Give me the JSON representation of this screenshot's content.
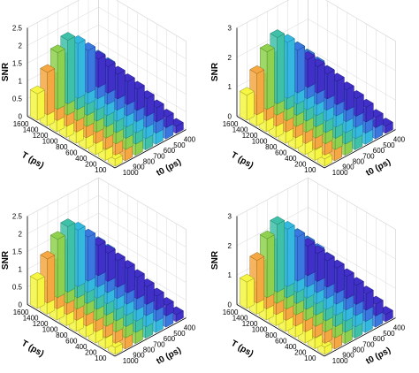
{
  "chart_data": [
    {
      "type": "bar",
      "ylabel": "SNR",
      "xlabel": "T (ps)",
      "zlabel": "t0 (ps)",
      "T_ticks": [
        "1600",
        "1400",
        "1200",
        "1000",
        "800",
        "600",
        "400",
        "200",
        "100"
      ],
      "t0_ticks": [
        "1000",
        "900",
        "800",
        "700",
        "600",
        "500",
        "400"
      ],
      "y_ticks": [
        "0",
        "0.5",
        "1",
        "1.5",
        "2",
        "2.5"
      ],
      "ylim": [
        0,
        2.5
      ],
      "t0_values": [
        1000,
        900,
        800,
        700,
        600,
        500,
        400
      ],
      "T_values": [
        1600,
        1400,
        1200,
        1000,
        800,
        600,
        400,
        200,
        100
      ],
      "values": [
        [
          0.75,
          1.2,
          1.6,
          1.8,
          1.55,
          1.2,
          0.8
        ],
        [
          0.7,
          1.15,
          1.55,
          1.75,
          1.5,
          1.15,
          0.75
        ],
        [
          0.65,
          1.1,
          1.5,
          1.7,
          1.45,
          1.1,
          0.7
        ],
        [
          0.6,
          1.0,
          1.4,
          1.6,
          1.35,
          1.0,
          0.65
        ],
        [
          0.55,
          0.9,
          1.3,
          1.5,
          1.25,
          0.9,
          0.6
        ],
        [
          0.5,
          0.8,
          1.15,
          1.35,
          1.1,
          0.8,
          0.5
        ],
        [
          0.4,
          0.7,
          1.0,
          1.15,
          0.95,
          0.7,
          0.4
        ],
        [
          0.3,
          0.5,
          0.75,
          0.9,
          0.7,
          0.5,
          0.3
        ],
        [
          0.2,
          0.35,
          0.5,
          0.6,
          0.5,
          0.35,
          0.2
        ]
      ]
    },
    {
      "type": "bar",
      "ylabel": "SNR",
      "xlabel": "T (ps)",
      "zlabel": "t0 (ps)",
      "T_ticks": [
        "1600",
        "1400",
        "1200",
        "1000",
        "800",
        "600",
        "400",
        "200",
        "100"
      ],
      "t0_ticks": [
        "1000",
        "900",
        "800",
        "700",
        "600",
        "500",
        "400"
      ],
      "y_ticks": [
        "0",
        "1",
        "2",
        "3"
      ],
      "ylim": [
        0,
        3
      ],
      "t0_values": [
        1000,
        900,
        800,
        700,
        600,
        500,
        400
      ],
      "T_values": [
        1600,
        1400,
        1200,
        1000,
        800,
        600,
        400,
        200,
        100
      ],
      "values": [
        [
          0.85,
          1.4,
          1.95,
          2.25,
          1.9,
          1.45,
          0.95
        ],
        [
          0.8,
          1.35,
          1.9,
          2.2,
          1.85,
          1.4,
          0.9
        ],
        [
          0.75,
          1.3,
          1.85,
          2.15,
          1.8,
          1.35,
          0.85
        ],
        [
          0.7,
          1.2,
          1.75,
          2.05,
          1.7,
          1.25,
          0.8
        ],
        [
          0.65,
          1.1,
          1.6,
          1.9,
          1.55,
          1.15,
          0.7
        ],
        [
          0.55,
          0.95,
          1.4,
          1.7,
          1.35,
          1.0,
          0.6
        ],
        [
          0.45,
          0.8,
          1.2,
          1.45,
          1.15,
          0.85,
          0.5
        ],
        [
          0.35,
          0.6,
          0.9,
          1.1,
          0.85,
          0.6,
          0.35
        ],
        [
          0.25,
          0.4,
          0.6,
          0.75,
          0.6,
          0.4,
          0.25
        ]
      ]
    },
    {
      "type": "bar",
      "ylabel": "SNR",
      "xlabel": "T (ps)",
      "zlabel": "t0 (ps)",
      "T_ticks": [
        "1600",
        "1400",
        "1200",
        "1000",
        "800",
        "600",
        "400",
        "200",
        "100"
      ],
      "t0_ticks": [
        "1000",
        "900",
        "800",
        "700",
        "600",
        "500",
        "400"
      ],
      "y_ticks": [
        "0",
        "0.5",
        "1",
        "1.5",
        "2",
        "2.5"
      ],
      "ylim": [
        0,
        2.5
      ],
      "t0_values": [
        1000,
        900,
        800,
        700,
        600,
        500,
        400
      ],
      "T_values": [
        1600,
        1400,
        1200,
        1000,
        800,
        600,
        400,
        200,
        100
      ],
      "values": [
        [
          0.8,
          1.25,
          1.65,
          1.85,
          1.6,
          1.25,
          0.85
        ],
        [
          0.75,
          1.2,
          1.6,
          1.8,
          1.55,
          1.2,
          0.8
        ],
        [
          0.7,
          1.15,
          1.55,
          1.75,
          1.5,
          1.15,
          0.75
        ],
        [
          0.65,
          1.05,
          1.45,
          1.65,
          1.4,
          1.05,
          0.7
        ],
        [
          0.6,
          0.95,
          1.35,
          1.55,
          1.3,
          0.95,
          0.6
        ],
        [
          0.5,
          0.85,
          1.2,
          1.4,
          1.15,
          0.85,
          0.5
        ],
        [
          0.4,
          0.7,
          1.05,
          1.2,
          1.0,
          0.7,
          0.4
        ],
        [
          0.3,
          0.55,
          0.8,
          0.95,
          0.75,
          0.55,
          0.3
        ],
        [
          0.2,
          0.35,
          0.55,
          0.65,
          0.55,
          0.35,
          0.2
        ]
      ]
    },
    {
      "type": "bar",
      "ylabel": "SNR",
      "xlabel": "T (ps)",
      "zlabel": "t0 (ps)",
      "T_ticks": [
        "1600",
        "1400",
        "1200",
        "1000",
        "800",
        "600",
        "400",
        "200",
        "100"
      ],
      "t0_ticks": [
        "1000",
        "900",
        "800",
        "700",
        "600",
        "500",
        "400"
      ],
      "y_ticks": [
        "0",
        "1",
        "2",
        "3"
      ],
      "ylim": [
        0,
        3
      ],
      "t0_values": [
        1000,
        900,
        800,
        700,
        600,
        500,
        400
      ],
      "T_values": [
        1600,
        1400,
        1200,
        1000,
        800,
        600,
        400,
        200,
        100
      ],
      "values": [
        [
          0.9,
          1.45,
          2.0,
          2.3,
          1.95,
          1.5,
          1.0
        ],
        [
          0.85,
          1.4,
          1.95,
          2.25,
          1.9,
          1.45,
          0.95
        ],
        [
          0.8,
          1.35,
          1.9,
          2.2,
          1.85,
          1.4,
          0.9
        ],
        [
          0.75,
          1.25,
          1.8,
          2.1,
          1.75,
          1.3,
          0.85
        ],
        [
          0.7,
          1.15,
          1.65,
          1.95,
          1.6,
          1.2,
          0.75
        ],
        [
          0.6,
          1.0,
          1.45,
          1.75,
          1.4,
          1.05,
          0.65
        ],
        [
          0.5,
          0.85,
          1.25,
          1.5,
          1.2,
          0.9,
          0.55
        ],
        [
          0.35,
          0.65,
          0.95,
          1.15,
          0.9,
          0.65,
          0.4
        ],
        [
          0.25,
          0.45,
          0.65,
          0.8,
          0.65,
          0.45,
          0.25
        ]
      ]
    }
  ],
  "colors": {
    "t0_colors": [
      "#f5f542",
      "#f5a742",
      "#8fd14f",
      "#3fc0a8",
      "#35b8e0",
      "#3a78e0",
      "#4030c8"
    ],
    "t0_edge": [
      "#9a9a20",
      "#9a6a20",
      "#4f8a2a",
      "#20806e",
      "#1c7a98",
      "#1f4a98",
      "#201880"
    ],
    "axis": "#000000",
    "grid": "#d8d8d8"
  }
}
